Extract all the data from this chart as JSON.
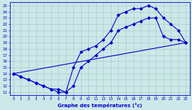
{
  "xlabel": "Graphe des températures (°c)",
  "bg_color": "#cce8e8",
  "grid_color": "#aacccc",
  "line_color": "#0000cc",
  "xlim": [
    -0.5,
    23.5
  ],
  "ylim": [
    10.5,
    25.5
  ],
  "xticks": [
    0,
    1,
    2,
    3,
    4,
    5,
    6,
    7,
    8,
    9,
    10,
    11,
    12,
    13,
    14,
    15,
    16,
    17,
    18,
    19,
    20,
    21,
    22,
    23
  ],
  "yticks": [
    11,
    12,
    13,
    14,
    15,
    16,
    17,
    18,
    19,
    20,
    21,
    22,
    23,
    24,
    25
  ],
  "line1_x": [
    0,
    1,
    2,
    3,
    4,
    5,
    6,
    7,
    8,
    9,
    10,
    11,
    12,
    13,
    14,
    15,
    16,
    17,
    18,
    19,
    20,
    21,
    22,
    23
  ],
  "line1_y": [
    14,
    13.5,
    13,
    12.5,
    12,
    11.5,
    11,
    11,
    15,
    17.5,
    18,
    18.5,
    19.5,
    21,
    23.5,
    24,
    24.5,
    24.5,
    25,
    24.5,
    23,
    22,
    21,
    19
  ],
  "line2_x": [
    0,
    1,
    2,
    3,
    4,
    5,
    6,
    7,
    8,
    9,
    10,
    11,
    12,
    13,
    14,
    15,
    16,
    17,
    18,
    19,
    20,
    21,
    22,
    23
  ],
  "line2_y": [
    14,
    13.5,
    13,
    12.5,
    12,
    11.5,
    11.5,
    11,
    12,
    15,
    16,
    17,
    18,
    19,
    21,
    21.5,
    22,
    22.5,
    23,
    23,
    20,
    19.5,
    19.5,
    19
  ],
  "line3_x": [
    0,
    23
  ],
  "line3_y": [
    14,
    19
  ]
}
